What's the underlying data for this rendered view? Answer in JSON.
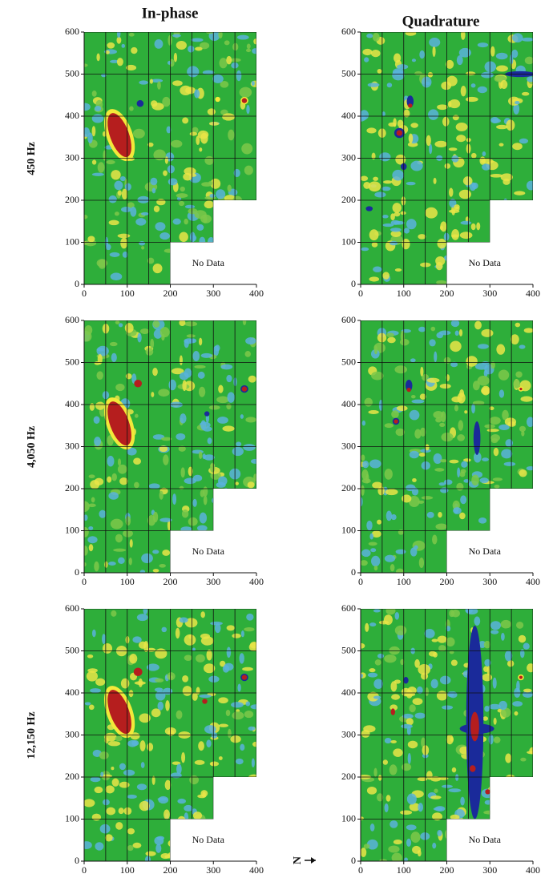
{
  "columns": [
    "In-phase",
    "Quadrature"
  ],
  "rows": [
    "450 Hz",
    "4,050 Hz",
    "12,150 Hz"
  ],
  "north_label": "N",
  "chart_data": [
    {
      "type": "map",
      "xlim": [
        0,
        400
      ],
      "ylim": [
        0,
        600
      ],
      "xticks": [
        0,
        100,
        200,
        300,
        400
      ],
      "yticks": [
        0,
        100,
        200,
        300,
        400,
        500,
        600
      ],
      "annotation": "No Data"
    },
    {
      "type": "map",
      "xlim": [
        0,
        400
      ],
      "ylim": [
        0,
        600
      ],
      "xticks": [
        0,
        100,
        200,
        300,
        400
      ],
      "yticks": [
        0,
        100,
        200,
        300,
        400,
        500,
        600
      ],
      "annotation": "No Data"
    },
    {
      "type": "map",
      "xlim": [
        0,
        400
      ],
      "ylim": [
        0,
        600
      ],
      "xticks": [
        0,
        100,
        200,
        300,
        400
      ],
      "yticks": [
        0,
        100,
        200,
        300,
        400,
        500,
        600
      ],
      "annotation": "No Data"
    },
    {
      "type": "map",
      "xlim": [
        0,
        400
      ],
      "ylim": [
        0,
        600
      ],
      "xticks": [
        0,
        100,
        200,
        300,
        400
      ],
      "yticks": [
        0,
        100,
        200,
        300,
        400,
        500,
        600
      ],
      "annotation": "No Data"
    },
    {
      "type": "map",
      "xlim": [
        0,
        400
      ],
      "ylim": [
        0,
        600
      ],
      "xticks": [
        0,
        100,
        200,
        300,
        400
      ],
      "yticks": [
        0,
        100,
        200,
        300,
        400,
        500,
        600
      ],
      "annotation": "No Data"
    },
    {
      "type": "map",
      "xlim": [
        0,
        400
      ],
      "ylim": [
        0,
        600
      ],
      "xticks": [
        0,
        100,
        200,
        300,
        400
      ],
      "yticks": [
        0,
        100,
        200,
        300,
        400,
        500,
        600
      ],
      "annotation": "No Data"
    }
  ]
}
